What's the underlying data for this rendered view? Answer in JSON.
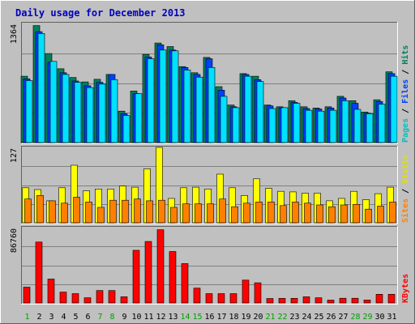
{
  "chart_data": {
    "type": "bar",
    "title": "Daily usage for December 2013",
    "categories": [
      "1",
      "2",
      "3",
      "4",
      "5",
      "6",
      "7",
      "8",
      "9",
      "10",
      "11",
      "12",
      "13",
      "14",
      "15",
      "16",
      "17",
      "18",
      "19",
      "20",
      "21",
      "22",
      "23",
      "24",
      "25",
      "26",
      "27",
      "28",
      "29",
      "30",
      "31"
    ],
    "weekend_days": [
      "1",
      "7",
      "8",
      "14",
      "15",
      "21",
      "22",
      "28",
      "29"
    ],
    "panels": [
      {
        "id": "hits-files-pages",
        "y_max": 1364,
        "y_max_label": "1364",
        "side_labels": [
          {
            "text": "Pages",
            "color": "#00c0c0"
          },
          {
            "text": "Files",
            "color": "#0040ff"
          },
          {
            "text": "Hits",
            "color": "#00805c"
          }
        ],
        "separator": " / ",
        "series": [
          {
            "name": "Hits",
            "color": "#00805c",
            "values": [
              760,
              1340,
              1020,
              845,
              745,
              695,
              725,
              780,
              360,
              590,
              1010,
              1140,
              1100,
              870,
              800,
              975,
              640,
              430,
              790,
              760,
              430,
              410,
              480,
              410,
              395,
              410,
              530,
              480,
              350,
              490,
              810
            ]
          },
          {
            "name": "Files",
            "color": "#0040ff",
            "values": [
              730,
              1270,
              920,
              800,
              705,
              650,
              690,
              780,
              330,
              560,
              980,
              1120,
              1060,
              860,
              780,
              960,
              600,
              410,
              780,
              720,
              420,
              400,
              460,
              390,
              385,
              395,
              510,
              450,
              335,
              470,
              790
            ]
          },
          {
            "name": "Pages",
            "color": "#00e0ff",
            "values": [
              710,
              1250,
              930,
              780,
              690,
              630,
              670,
              720,
              310,
              560,
              960,
              1060,
              1050,
              830,
              750,
              860,
              530,
              400,
              760,
              700,
              390,
              400,
              450,
              370,
              360,
              370,
              480,
              380,
              330,
              440,
              760
            ]
          }
        ]
      },
      {
        "id": "visits-sites",
        "y_max": 127,
        "y_max_label": "127",
        "side_labels": [
          {
            "text": "Sites",
            "color": "#ff8000"
          },
          {
            "text": "Visits",
            "color": "#e0e000"
          }
        ],
        "separator": " / ",
        "series": [
          {
            "name": "Visits",
            "color": "#ffff00",
            "values": [
              59,
              56,
              37,
              59,
              97,
              54,
              57,
              57,
              62,
              60,
              91,
              127,
              41,
              59,
              60,
              57,
              82,
              59,
              46,
              74,
              58,
              53,
              52,
              50,
              50,
              37,
              41,
              53,
              39,
              49,
              60
            ]
          },
          {
            "name": "Sites",
            "color": "#ff8000",
            "values": [
              40,
              46,
              37,
              33,
              43,
              35,
              26,
              38,
              38,
              40,
              37,
              38,
              26,
              32,
              32,
              32,
              40,
              27,
              33,
              35,
              35,
              29,
              35,
              33,
              30,
              27,
              30,
              31,
              23,
              28,
              35
            ]
          }
        ]
      },
      {
        "id": "kbytes",
        "y_max": 86760,
        "y_max_label": "86760",
        "side_labels": [
          {
            "text": "KBytes",
            "color": "#ff0000"
          }
        ],
        "separator": " / ",
        "series": [
          {
            "name": "KBytes",
            "color": "#ff0000",
            "values": [
              18200,
              70200,
              27500,
              12500,
              10700,
              6000,
              14300,
              14300,
              7100,
              60600,
              70800,
              84300,
              59200,
              45300,
              17100,
              10700,
              10700,
              10700,
              26300,
              23200,
              5100,
              5300,
              5300,
              7100,
              6000,
              3300,
              5400,
              5400,
              3400,
              10000,
              10000
            ]
          }
        ]
      }
    ]
  }
}
